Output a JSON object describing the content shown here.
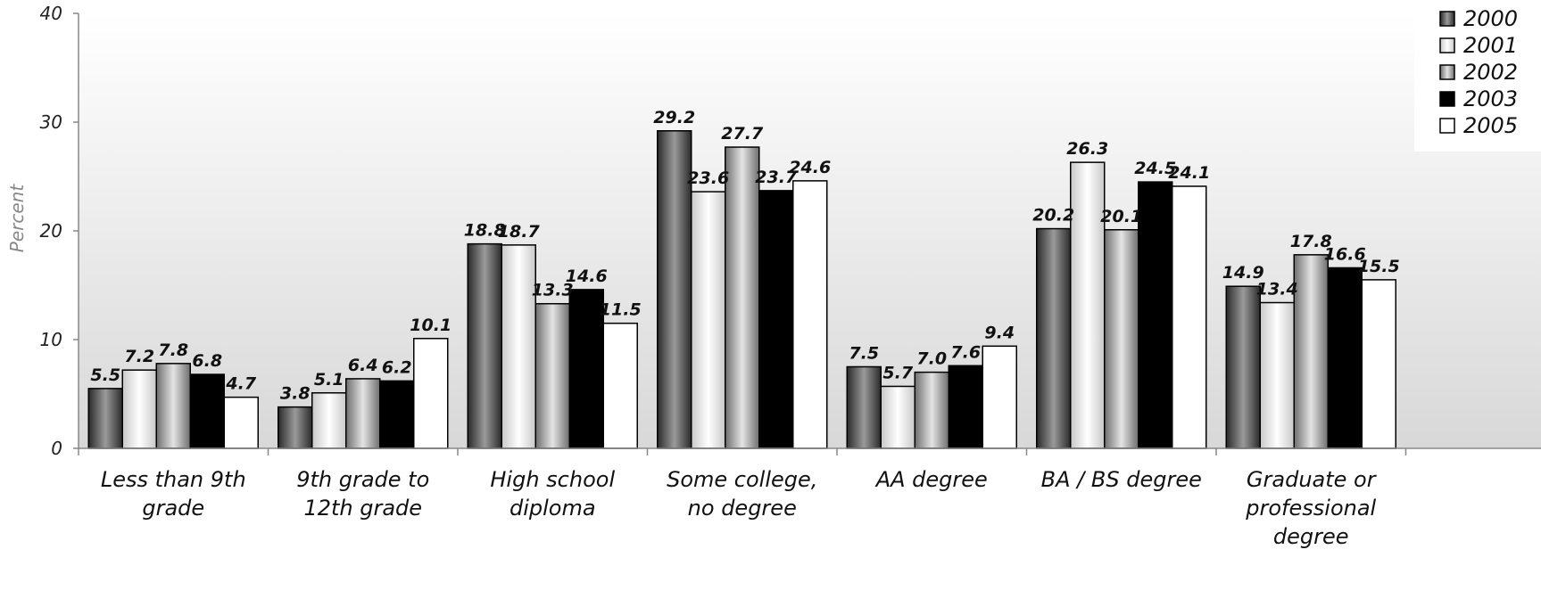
{
  "chart_data": {
    "type": "bar",
    "title": "",
    "xlabel": "",
    "ylabel": "Percent",
    "ylim": [
      0,
      40
    ],
    "yticks": [
      "0",
      "10",
      "20",
      "30",
      "40"
    ],
    "grid": false,
    "legend_position": "top-right",
    "categories": [
      [
        "Less than 9th",
        "grade"
      ],
      [
        "9th grade to",
        "12th grade"
      ],
      [
        "High school",
        "diploma"
      ],
      [
        "Some college,",
        "no degree"
      ],
      [
        "AA degree"
      ],
      [
        "BA / BS degree"
      ],
      [
        "Graduate or",
        "professional",
        "degree"
      ]
    ],
    "series": [
      {
        "name": "2000",
        "fill": "gradient-dark",
        "values": [
          5.5,
          3.8,
          18.8,
          29.2,
          7.5,
          20.2,
          14.9
        ],
        "labels": [
          "5.5",
          "3.8",
          "18.8",
          "29.2",
          "7.5",
          "20.2",
          "14.9"
        ]
      },
      {
        "name": "2001",
        "fill": "gradient-light",
        "values": [
          7.2,
          5.1,
          18.7,
          23.6,
          5.7,
          26.3,
          13.4
        ],
        "labels": [
          "7.2",
          "5.1",
          "18.7",
          "23.6",
          "5.7",
          "26.3",
          "13.4"
        ]
      },
      {
        "name": "2002",
        "fill": "gradient-mid",
        "values": [
          7.8,
          6.4,
          13.3,
          27.7,
          7.0,
          20.1,
          17.8
        ],
        "labels": [
          "7.8",
          "6.4",
          "13.3",
          "27.7",
          "7.0",
          "20.1",
          "17.8"
        ]
      },
      {
        "name": "2003",
        "fill": "#000000",
        "values": [
          6.8,
          6.2,
          14.6,
          23.7,
          7.6,
          24.5,
          16.6
        ],
        "labels": [
          "6.8",
          "6.2",
          "14.6",
          "23.7",
          "7.6",
          "24.5",
          "16.6"
        ]
      },
      {
        "name": "2005",
        "fill": "#ffffff",
        "values": [
          4.7,
          10.1,
          11.5,
          24.6,
          9.4,
          24.1,
          15.5
        ],
        "labels": [
          "4.7",
          "10.1",
          "11.5",
          "24.6",
          "9.4",
          "24.1",
          "15.5"
        ]
      }
    ],
    "colors": {
      "background_top": "#ffffff",
      "background_bottom": "#d8d8d8",
      "axis": "#888888",
      "bar_stroke": "#000000"
    }
  }
}
